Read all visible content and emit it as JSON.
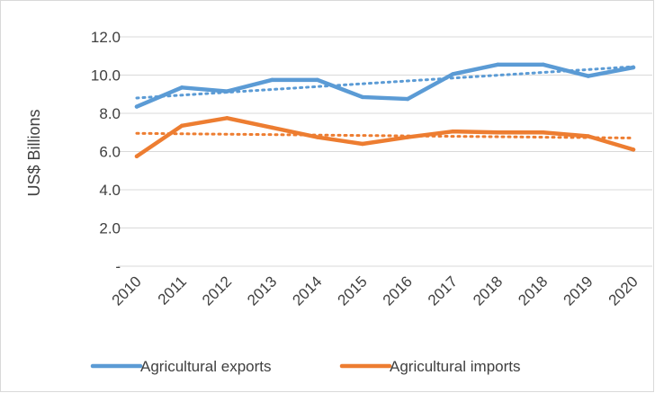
{
  "chart_data": {
    "type": "line",
    "title": "",
    "xlabel": "",
    "ylabel": "US$ Billions",
    "categories": [
      "2010",
      "2011",
      "2012",
      "2013",
      "2014",
      "2015",
      "2016",
      "2017",
      "2018",
      "2018",
      "2019",
      "2020"
    ],
    "y_tick_labels": [
      "-",
      "2.0",
      "4.0",
      "6.0",
      "8.0",
      "10.0",
      "12.0"
    ],
    "ylim": [
      0,
      12
    ],
    "grid": true,
    "legend_position": "bottom",
    "series": [
      {
        "name": "Agricultural exports",
        "color": "#5b9bd5",
        "values": [
          8.35,
          9.35,
          9.15,
          9.75,
          9.75,
          8.85,
          8.75,
          10.05,
          10.55,
          10.55,
          9.95,
          10.4
        ],
        "trendline": "linear"
      },
      {
        "name": "Agricultural imports",
        "color": "#ed7d31",
        "values": [
          5.75,
          7.35,
          7.75,
          7.25,
          6.75,
          6.4,
          6.75,
          7.05,
          7.0,
          7.0,
          6.8,
          6.1
        ],
        "trendline": "linear"
      }
    ]
  }
}
